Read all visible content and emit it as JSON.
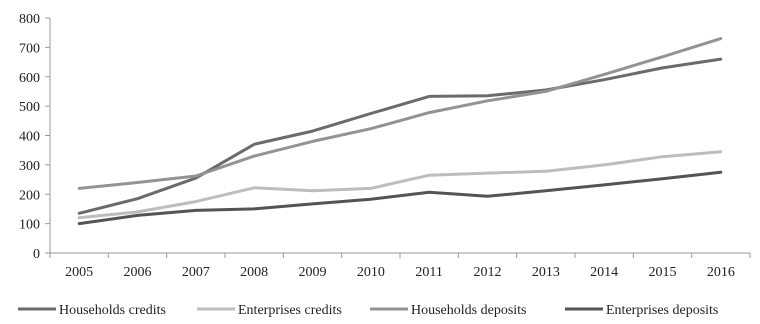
{
  "chart_data": {
    "type": "line",
    "categories": [
      "2005",
      "2006",
      "2007",
      "2008",
      "2009",
      "2010",
      "2011",
      "2012",
      "2013",
      "2014",
      "2015",
      "2016"
    ],
    "ylim": [
      0,
      800
    ],
    "yticks": [
      0,
      100,
      200,
      300,
      400,
      500,
      600,
      700,
      800
    ],
    "grid": false,
    "legend_position": "bottom",
    "series": [
      {
        "name": "Households credits",
        "color": "#6b6b6b",
        "values": [
          135,
          185,
          255,
          370,
          415,
          475,
          533,
          535,
          555,
          590,
          630,
          660
        ]
      },
      {
        "name": "Enterprises credits",
        "color": "#bdbdbd",
        "values": [
          120,
          140,
          175,
          222,
          212,
          220,
          265,
          272,
          278,
          300,
          328,
          345
        ]
      },
      {
        "name": "Households deposits",
        "color": "#939393",
        "values": [
          220,
          240,
          262,
          330,
          380,
          423,
          478,
          518,
          550,
          608,
          668,
          730
        ]
      },
      {
        "name": "Enterprises deposits",
        "color": "#545454",
        "values": [
          100,
          128,
          145,
          150,
          167,
          183,
          207,
          193,
          212,
          232,
          253,
          275
        ]
      }
    ]
  }
}
